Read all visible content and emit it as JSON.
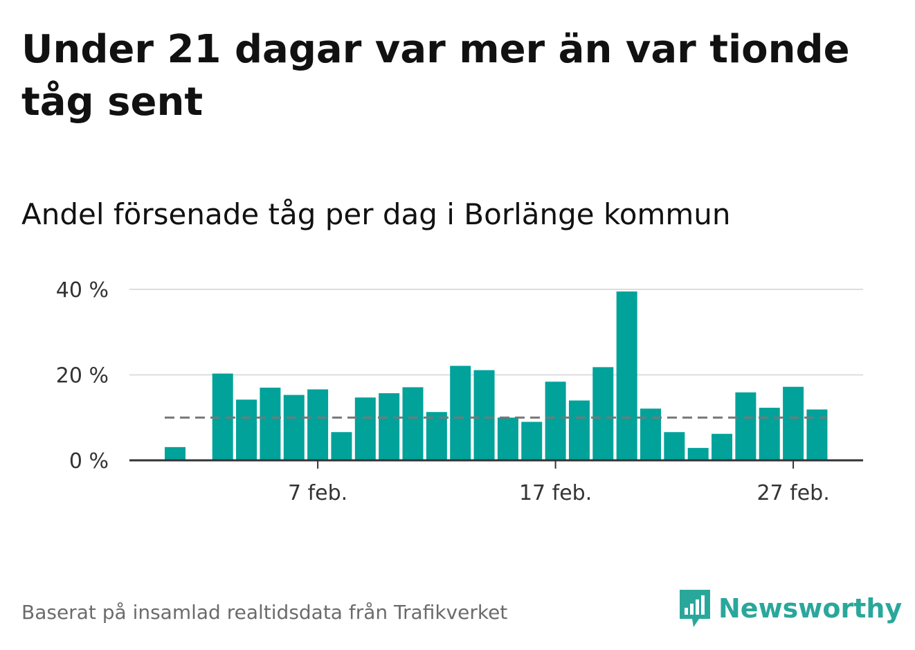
{
  "title": "Under 21 dagar var mer än var tionde tåg sent",
  "subtitle": "Andel försenade tåg per dag i Borlänge kommun",
  "source": "Baserat på insamlad realtidsdata från Trafikverket",
  "logo": {
    "text": "Newsworthy",
    "icon": "newsworthy-bars-icon",
    "color": "#2aa79b"
  },
  "colors": {
    "bar": "#00a29a",
    "reference_line": "#777777",
    "grid": "#dddddd",
    "axis": "#333333"
  },
  "chart_data": {
    "type": "bar",
    "title": "Andel försenade tåg per dag i Borlänge kommun",
    "categories": [
      "1 feb.",
      "2 feb.",
      "3 feb.",
      "4 feb.",
      "5 feb.",
      "6 feb.",
      "7 feb.",
      "8 feb.",
      "9 feb.",
      "10 feb.",
      "11 feb.",
      "12 feb.",
      "13 feb.",
      "14 feb.",
      "15 feb.",
      "16 feb.",
      "17 feb.",
      "18 feb.",
      "19 feb.",
      "20 feb.",
      "21 feb.",
      "22 feb.",
      "23 feb.",
      "24 feb.",
      "25 feb.",
      "26 feb.",
      "27 feb.",
      "28 feb."
    ],
    "values": [
      3.1,
      null,
      20.3,
      14.2,
      17.0,
      15.3,
      16.6,
      6.6,
      14.7,
      15.7,
      17.1,
      11.3,
      22.1,
      21.1,
      10.0,
      9.0,
      18.4,
      14.0,
      21.8,
      39.5,
      12.1,
      6.6,
      2.9,
      6.2,
      15.9,
      12.3,
      17.2,
      11.9
    ],
    "reference_line": 10,
    "ylim": [
      0,
      40
    ],
    "y_ticks": [
      0,
      20,
      40
    ],
    "y_tick_labels": [
      "0 %",
      "20 %",
      "40 %"
    ],
    "x_tick_labels": [
      {
        "category": "7 feb.",
        "label": "7 feb."
      },
      {
        "category": "17 feb.",
        "label": "17 feb."
      },
      {
        "category": "27 feb.",
        "label": "27 feb."
      }
    ],
    "xlabel": "",
    "ylabel": "",
    "grid": true
  }
}
